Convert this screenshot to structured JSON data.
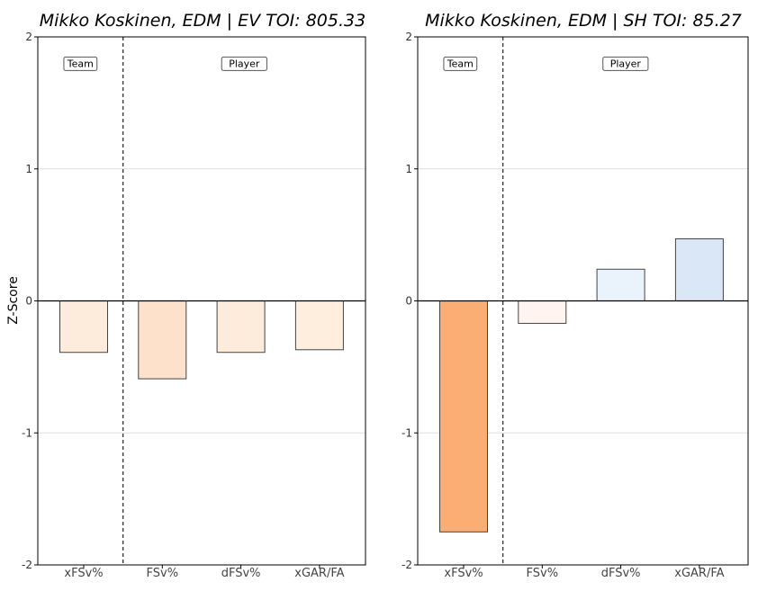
{
  "figure": {
    "ylabel": "Z-Score"
  },
  "chart_data": [
    {
      "type": "bar",
      "title": "Mikko Koskinen, EDM | EV TOI: 805.33",
      "xlabel": "",
      "ylabel": "Z-Score",
      "categories": [
        "xFSv%",
        "FSv%",
        "dFSv%",
        "xGAR/FA"
      ],
      "values": [
        -0.39,
        -0.59,
        -0.39,
        -0.37
      ],
      "colors": [
        "#fdebdc",
        "#fde1ca",
        "#fdebdc",
        "#fdeede"
      ],
      "ylim": [
        -2,
        2
      ],
      "yticks": [
        2,
        1,
        0,
        -1,
        -2
      ],
      "ytick_labels": [
        "2",
        "1",
        "0",
        "-1",
        "-2"
      ],
      "grid": "horizontal",
      "divider_after_index": 0,
      "annotations": [
        "Team",
        "Player"
      ]
    },
    {
      "type": "bar",
      "title": "Mikko Koskinen, EDM | SH TOI: 85.27",
      "xlabel": "",
      "ylabel": "",
      "categories": [
        "xFSv%",
        "FSv%",
        "dFSv%",
        "xGAR/FA"
      ],
      "values": [
        -1.75,
        -0.17,
        0.24,
        0.47
      ],
      "colors": [
        "#fbae74",
        "#fff4f0",
        "#eaf2fb",
        "#dae7f6"
      ],
      "ylim": [
        -2,
        2
      ],
      "yticks": [
        2,
        1,
        0,
        -1,
        -2
      ],
      "ytick_labels": [
        "2",
        "1",
        "0",
        "-1",
        "-2"
      ],
      "grid": "horizontal",
      "divider_after_index": 0,
      "annotations": [
        "Team",
        "Player"
      ]
    }
  ]
}
